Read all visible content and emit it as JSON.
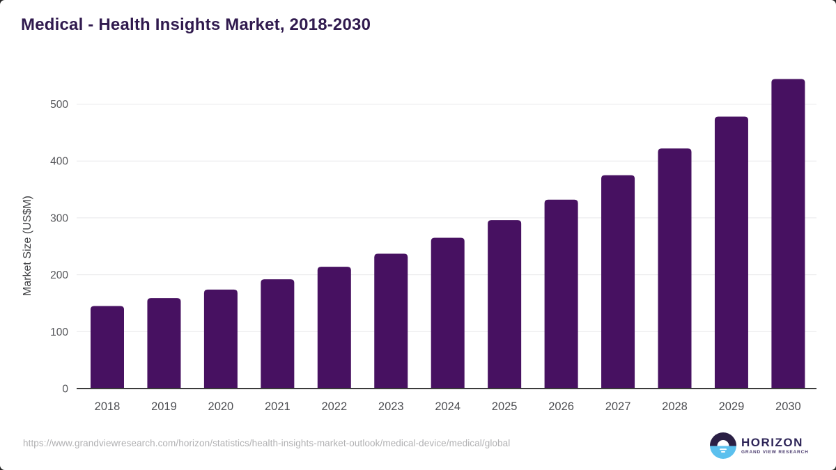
{
  "page": {
    "title": "Medical - Health Insights Market, 2018-2030"
  },
  "chart_data": {
    "type": "bar",
    "title": "Medical - Health Insights Market, 2018-2030",
    "categories": [
      "2018",
      "2019",
      "2020",
      "2021",
      "2022",
      "2023",
      "2024",
      "2025",
      "2026",
      "2027",
      "2028",
      "2029",
      "2030"
    ],
    "values": [
      145,
      159,
      174,
      192,
      214,
      237,
      265,
      296,
      332,
      375,
      422,
      478,
      544
    ],
    "xlabel": "",
    "ylabel": "Market Size (US$M)",
    "yticks": [
      0,
      100,
      200,
      300,
      400,
      500
    ],
    "ylim": [
      0,
      560
    ],
    "grid": true,
    "legend_position": "none",
    "bar_color": "#471161"
  },
  "footer": {
    "source_url": "https://www.grandviewresearch.com/horizon/statistics/health-insights-market-outlook/medical-device/medical/global",
    "logo": {
      "name": "HORIZON",
      "tagline": "GRAND VIEW RESEARCH"
    }
  },
  "colors": {
    "title_text": "#301a4e",
    "bar": "#471161",
    "grid_line": "#e7e7e9",
    "axis_line": "#3b3b3b",
    "y_tick_text": "#55565a",
    "x_tick_text": "#4d4e52",
    "y_axis_title_text": "#3f4043",
    "url_text": "#b0b0b2",
    "logo_dark": "#2a1f44",
    "logo_blue": "#5bc0ee",
    "logo_name_text": "#2d2457",
    "logo_tagline_text": "#4a3b6e"
  }
}
